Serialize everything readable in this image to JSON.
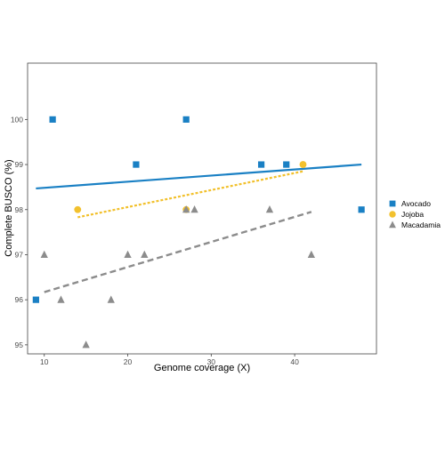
{
  "chart_data": {
    "type": "scatter",
    "xlabel": "Genome coverage (X)",
    "ylabel": "Complete BUSCO (%)",
    "xlim": [
      8.0,
      49.8
    ],
    "ylim": [
      94.8,
      101.25
    ],
    "x_ticks": [
      10,
      20,
      30,
      40
    ],
    "y_ticks": [
      95,
      96,
      97,
      98,
      99,
      100
    ],
    "grid": false,
    "legend_position": "right",
    "series": [
      {
        "name": "Avocado",
        "color": "#1a80c4",
        "marker": "square",
        "line_style": "solid",
        "points": [
          [
            9,
            96
          ],
          [
            11,
            100
          ],
          [
            21,
            99
          ],
          [
            27,
            100
          ],
          [
            36,
            99
          ],
          [
            39,
            99
          ],
          [
            48,
            98
          ]
        ],
        "trend": [
          [
            9,
            98.47
          ],
          [
            48,
            99.0
          ]
        ]
      },
      {
        "name": "Jojoba",
        "color": "#f2c12e",
        "marker": "circle",
        "line_style": "dotted",
        "points": [
          [
            14,
            98
          ],
          [
            27,
            98
          ],
          [
            41,
            99
          ]
        ],
        "trend": [
          [
            14,
            97.83
          ],
          [
            41,
            98.85
          ]
        ]
      },
      {
        "name": "Macadamia",
        "color": "#8c8c8c",
        "marker": "triangle",
        "line_style": "dashed",
        "points": [
          [
            10,
            97
          ],
          [
            12,
            96
          ],
          [
            15,
            95
          ],
          [
            18,
            96
          ],
          [
            20,
            97
          ],
          [
            22,
            97
          ],
          [
            27,
            98
          ],
          [
            28,
            98
          ],
          [
            37,
            98
          ],
          [
            42,
            97
          ]
        ],
        "trend": [
          [
            10,
            96.17
          ],
          [
            42,
            97.95
          ]
        ]
      }
    ]
  }
}
